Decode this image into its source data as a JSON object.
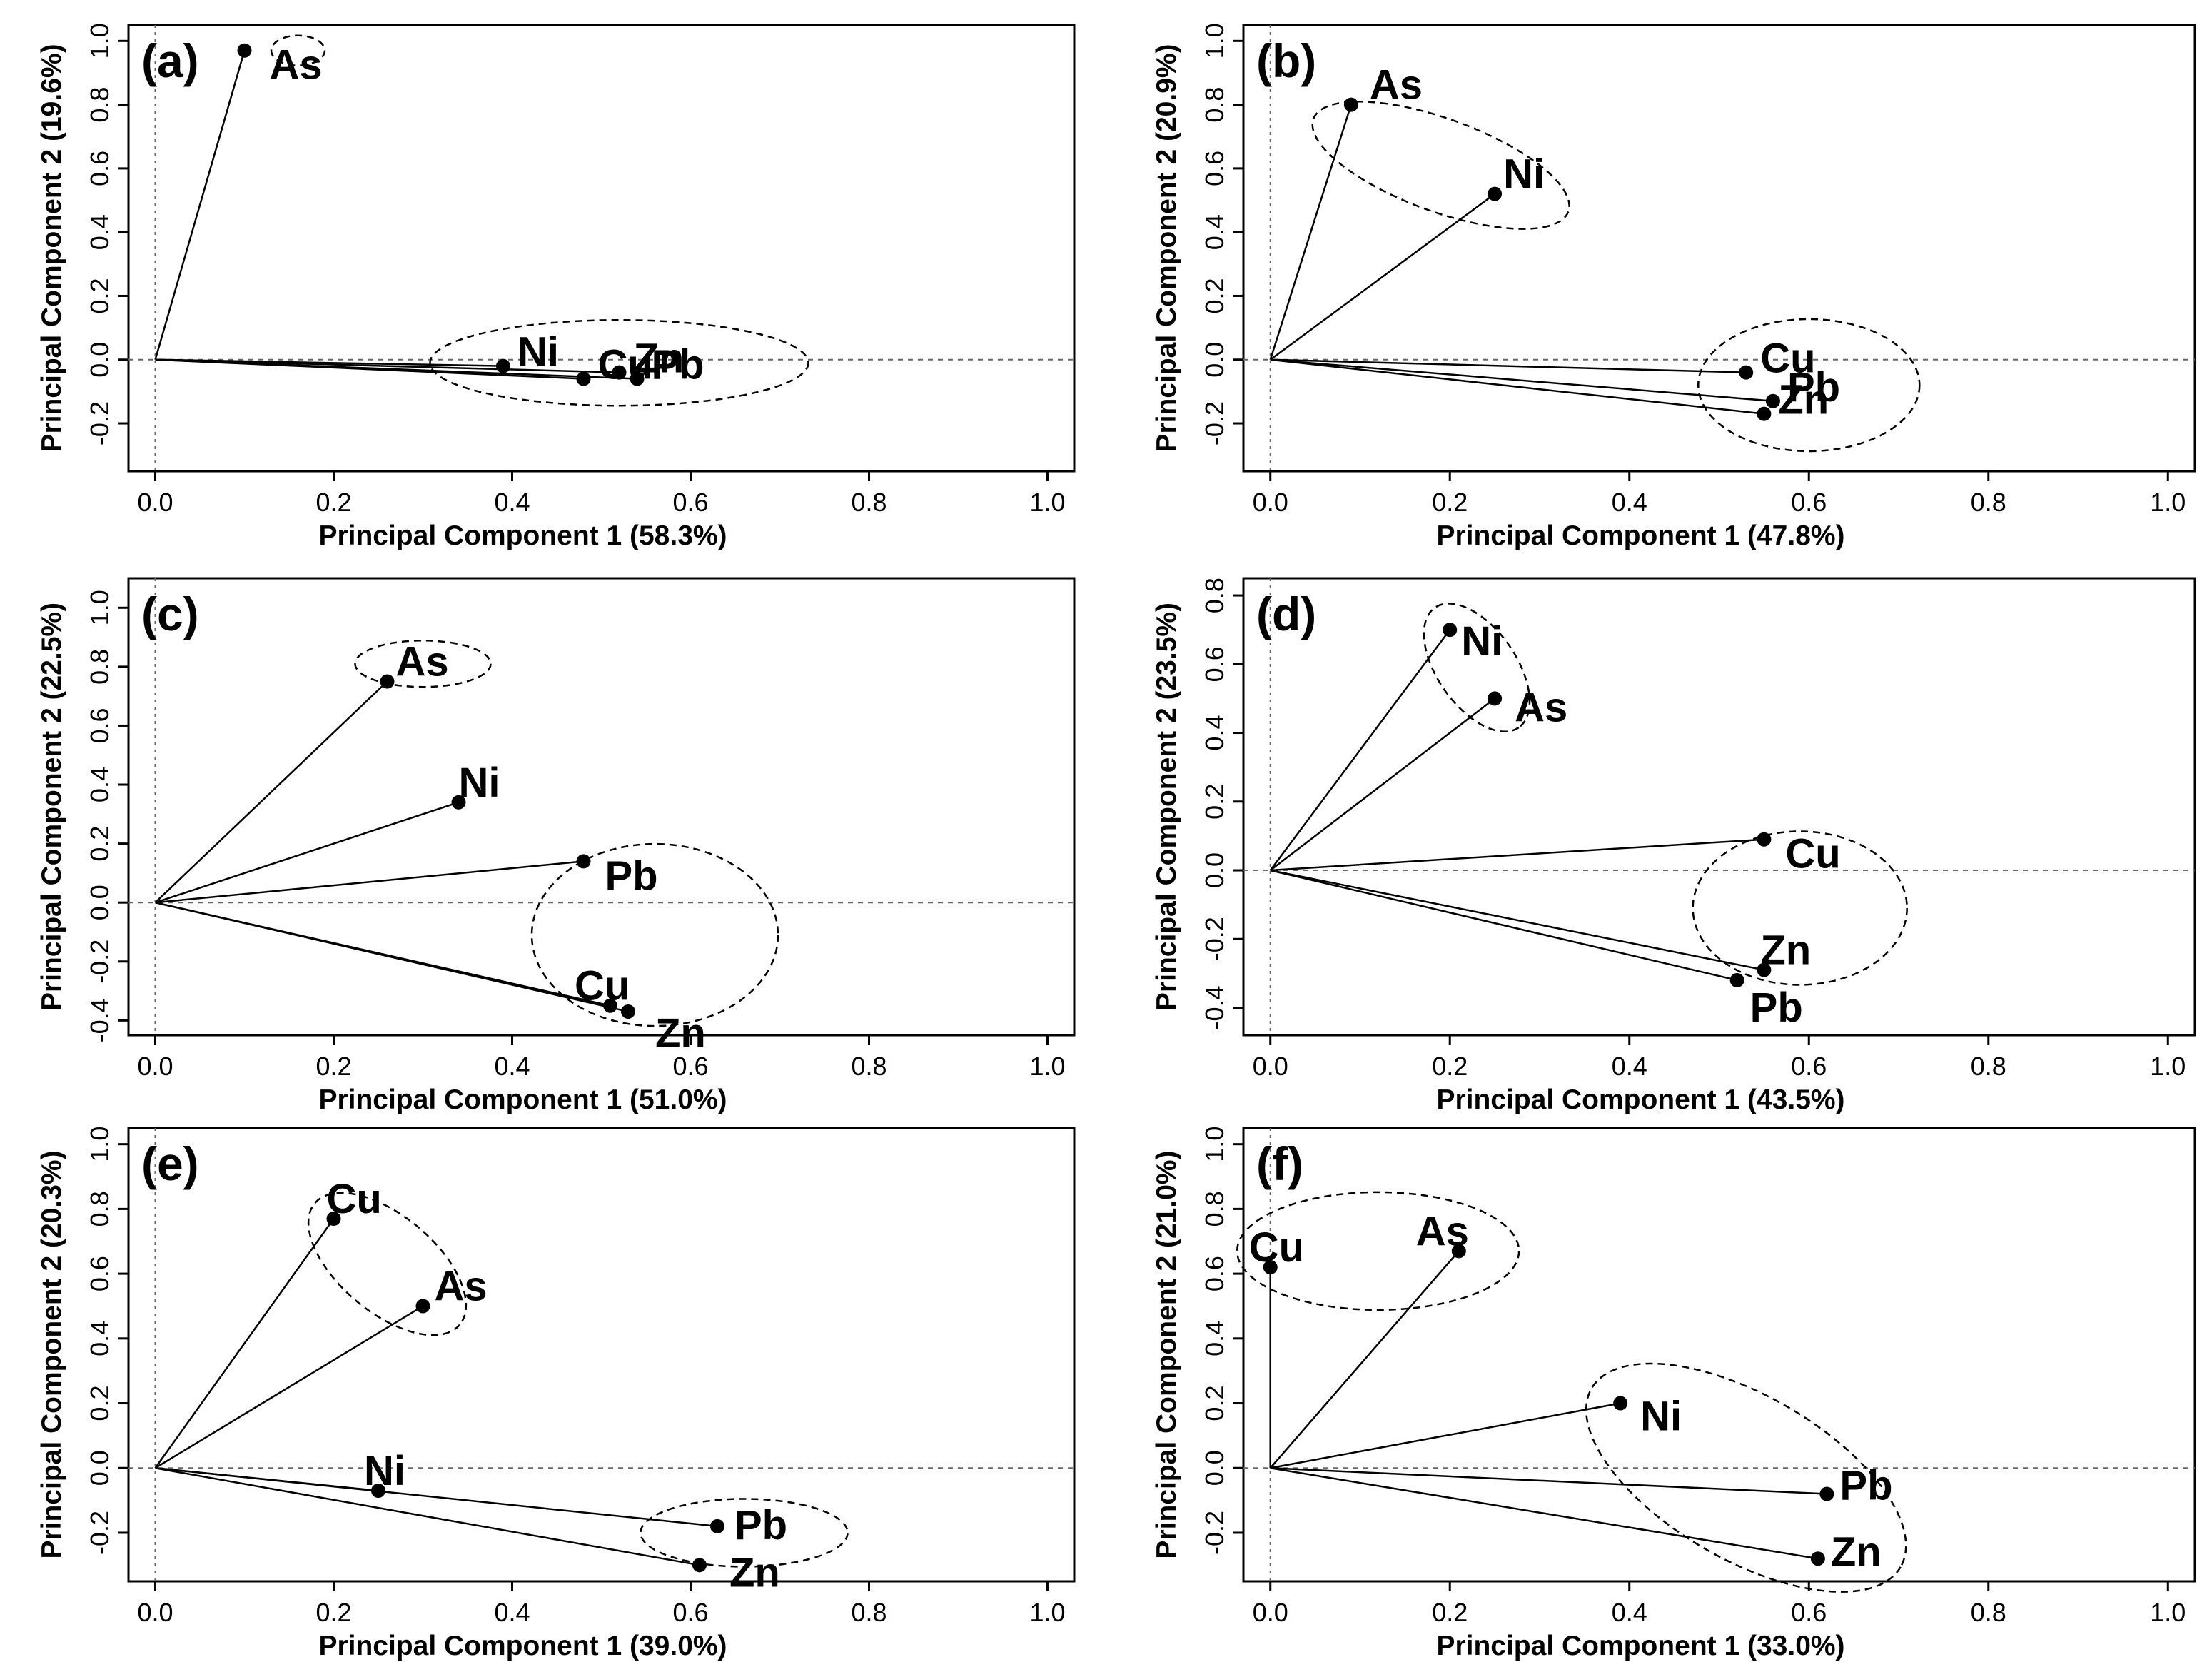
{
  "chart_data": [
    {
      "type": "scatter",
      "panel": "(a)",
      "xlabel": "Principal Component 1 (58.3%)",
      "ylabel": "Principal Component  2 (19.6%)",
      "xlim": [
        0,
        1
      ],
      "ylim": [
        -0.35,
        1.05
      ],
      "xticks": [
        "0.0",
        "0.2",
        "0.4",
        "0.6",
        "0.8",
        "1.0"
      ],
      "yticks": [
        "-0.2",
        "0.0",
        "0.2",
        "0.4",
        "0.6",
        "0.8",
        "1.0"
      ],
      "points": [
        {
          "label": "As",
          "x": 0.1,
          "y": 0.97
        },
        {
          "label": "Ni",
          "x": 0.39,
          "y": -0.02
        },
        {
          "label": "Zn",
          "x": 0.52,
          "y": -0.04
        },
        {
          "label": "Pb",
          "x": 0.54,
          "y": -0.06
        },
        {
          "label": "Cu",
          "x": 0.48,
          "y": -0.06
        }
      ],
      "groups": [
        [
          "As"
        ],
        [
          "Ni",
          "Zn",
          "Pb",
          "Cu"
        ]
      ]
    },
    {
      "type": "scatter",
      "panel": "(b)",
      "xlabel": "Principal Component 1 (47.8%)",
      "ylabel": "Principal Component  2 (20.9%)",
      "xlim": [
        0,
        1
      ],
      "ylim": [
        -0.35,
        1.05
      ],
      "xticks": [
        "0.0",
        "0.2",
        "0.4",
        "0.6",
        "0.8",
        "1.0"
      ],
      "yticks": [
        "-0.2",
        "0.0",
        "0.2",
        "0.4",
        "0.6",
        "0.8",
        "1.0"
      ],
      "points": [
        {
          "label": "As",
          "x": 0.09,
          "y": 0.8
        },
        {
          "label": "Ni",
          "x": 0.25,
          "y": 0.52
        },
        {
          "label": "Cu",
          "x": 0.53,
          "y": -0.04
        },
        {
          "label": "Pb",
          "x": 0.56,
          "y": -0.13
        },
        {
          "label": "Zn",
          "x": 0.55,
          "y": -0.17
        }
      ],
      "groups": [
        [
          "As",
          "Ni"
        ],
        [
          "Cu",
          "Pb",
          "Zn"
        ]
      ]
    },
    {
      "type": "scatter",
      "panel": "(c)",
      "xlabel": "Principal Component 1 (51.0%)",
      "ylabel": "Principal Component  2 (22.5%)",
      "xlim": [
        0,
        1
      ],
      "ylim": [
        -0.45,
        1.1
      ],
      "xticks": [
        "0.0",
        "0.2",
        "0.4",
        "0.6",
        "0.8",
        "1.0"
      ],
      "yticks": [
        "-0.4",
        "-0.2",
        "0.0",
        "0.2",
        "0.4",
        "0.6",
        "0.8",
        "1.0"
      ],
      "points": [
        {
          "label": "As",
          "x": 0.26,
          "y": 0.75
        },
        {
          "label": "Ni",
          "x": 0.34,
          "y": 0.34
        },
        {
          "label": "Pb",
          "x": 0.48,
          "y": 0.14
        },
        {
          "label": "Cu",
          "x": 0.51,
          "y": -0.35
        },
        {
          "label": "Zn",
          "x": 0.53,
          "y": -0.37
        }
      ],
      "groups": [
        [
          "As"
        ],
        [
          "Pb",
          "Cu",
          "Zn"
        ]
      ]
    },
    {
      "type": "scatter",
      "panel": "(d)",
      "xlabel": "Principal Component 1 (43.5%)",
      "ylabel": "Principal Component  2 (23.5%)",
      "xlim": [
        0,
        1
      ],
      "ylim": [
        -0.48,
        0.85
      ],
      "xticks": [
        "0.0",
        "0.2",
        "0.4",
        "0.6",
        "0.8",
        "1.0"
      ],
      "yticks": [
        "-0.4",
        "-0.2",
        "0.0",
        "0.2",
        "0.4",
        "0.6",
        "0.8"
      ],
      "points": [
        {
          "label": "Ni",
          "x": 0.2,
          "y": 0.7
        },
        {
          "label": "As",
          "x": 0.25,
          "y": 0.5
        },
        {
          "label": "Cu",
          "x": 0.55,
          "y": 0.09
        },
        {
          "label": "Zn",
          "x": 0.55,
          "y": -0.29
        },
        {
          "label": "Pb",
          "x": 0.52,
          "y": -0.32
        }
      ],
      "groups": [
        [
          "Ni",
          "As"
        ],
        [
          "Cu",
          "Zn",
          "Pb"
        ]
      ]
    },
    {
      "type": "scatter",
      "panel": "(e)",
      "xlabel": "Principal Component 1 (39.0%)",
      "ylabel": "Principal Component  2 (20.3%)",
      "xlim": [
        0,
        1
      ],
      "ylim": [
        -0.35,
        1.05
      ],
      "xticks": [
        "0.0",
        "0.2",
        "0.4",
        "0.6",
        "0.8",
        "1.0"
      ],
      "yticks": [
        "-0.2",
        "0.0",
        "0.2",
        "0.4",
        "0.6",
        "0.8",
        "1.0"
      ],
      "points": [
        {
          "label": "Cu",
          "x": 0.2,
          "y": 0.77
        },
        {
          "label": "As",
          "x": 0.3,
          "y": 0.5
        },
        {
          "label": "Ni",
          "x": 0.25,
          "y": -0.07
        },
        {
          "label": "Pb",
          "x": 0.63,
          "y": -0.18
        },
        {
          "label": "Zn",
          "x": 0.61,
          "y": -0.3
        }
      ],
      "groups": [
        [
          "Cu",
          "As"
        ],
        [
          "Pb",
          "Zn"
        ]
      ]
    },
    {
      "type": "scatter",
      "panel": "(f)",
      "xlabel": "Principal Component 1 (33.0%)",
      "ylabel": "Principal Component  2 (21.0%)",
      "xlim": [
        0,
        1
      ],
      "ylim": [
        -0.35,
        1.05
      ],
      "xticks": [
        "0.0",
        "0.2",
        "0.4",
        "0.6",
        "0.8",
        "1.0"
      ],
      "yticks": [
        "-0.2",
        "0.0",
        "0.2",
        "0.4",
        "0.6",
        "0.8",
        "1.0"
      ],
      "points": [
        {
          "label": "Cu",
          "x": 0.0,
          "y": 0.62
        },
        {
          "label": "As",
          "x": 0.21,
          "y": 0.67
        },
        {
          "label": "Ni",
          "x": 0.39,
          "y": 0.2
        },
        {
          "label": "Pb",
          "x": 0.62,
          "y": -0.08
        },
        {
          "label": "Zn",
          "x": 0.61,
          "y": -0.28
        }
      ],
      "groups": [
        [
          "Cu",
          "As"
        ],
        [
          "Ni",
          "Pb",
          "Zn"
        ]
      ]
    }
  ]
}
